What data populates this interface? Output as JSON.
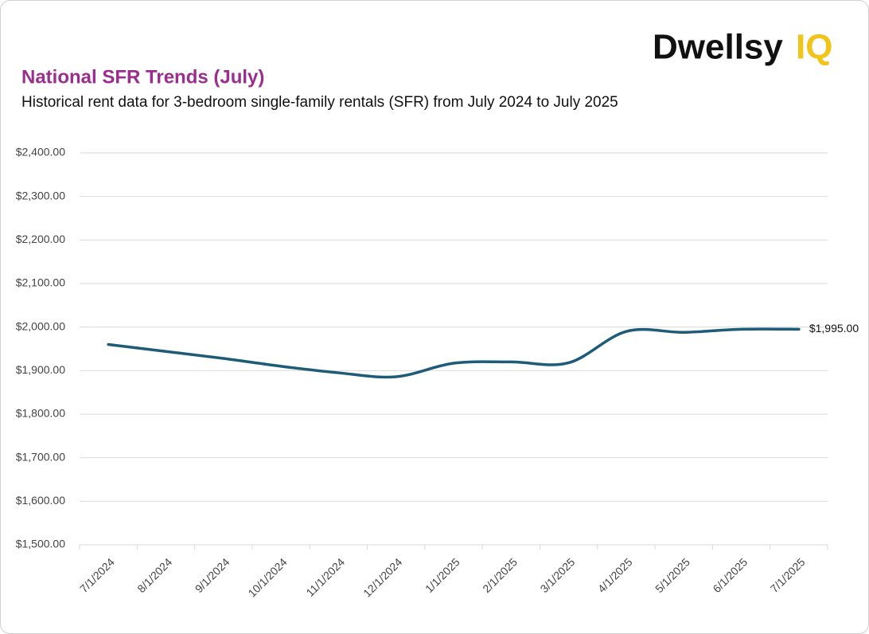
{
  "logo": {
    "name": "Dwellsy",
    "mark": "IQ"
  },
  "chart_data": {
    "type": "line",
    "title": "National SFR Trends (July)",
    "subtitle": "Historical rent data for 3-bedroom single-family rentals (SFR) from July 2024 to July 2025",
    "categories": [
      "7/1/2024",
      "8/1/2024",
      "9/1/2024",
      "10/1/2024",
      "11/1/2024",
      "12/1/2024",
      "1/1/2025",
      "2/1/2025",
      "3/1/2025",
      "4/1/2025",
      "5/1/2025",
      "6/1/2025",
      "7/1/2025"
    ],
    "series": [
      {
        "name": "3-bedroom SFR rent",
        "color": "#1d5b79",
        "values": [
          1960,
          1944,
          1928,
          1910,
          1895,
          1886,
          1917,
          1920,
          1918,
          1990,
          1988,
          1995,
          1995
        ],
        "value_labels": [
          null,
          null,
          null,
          null,
          null,
          null,
          null,
          null,
          null,
          null,
          null,
          null,
          "$1,995.00"
        ]
      }
    ],
    "ylim": [
      1500,
      2400
    ],
    "yticks": [
      {
        "value": 1500,
        "label": "$1,500.00"
      },
      {
        "value": 1600,
        "label": "$1,600.00"
      },
      {
        "value": 1700,
        "label": "$1,700.00"
      },
      {
        "value": 1800,
        "label": "$1,800.00"
      },
      {
        "value": 1900,
        "label": "$1,900.00"
      },
      {
        "value": 2000,
        "label": "$2,000.00"
      },
      {
        "value": 2100,
        "label": "$2,100.00"
      },
      {
        "value": 2200,
        "label": "$2,200.00"
      },
      {
        "value": 2300,
        "label": "$2,300.00"
      },
      {
        "value": 2400,
        "label": "$2,400.00"
      }
    ],
    "grid": true
  }
}
